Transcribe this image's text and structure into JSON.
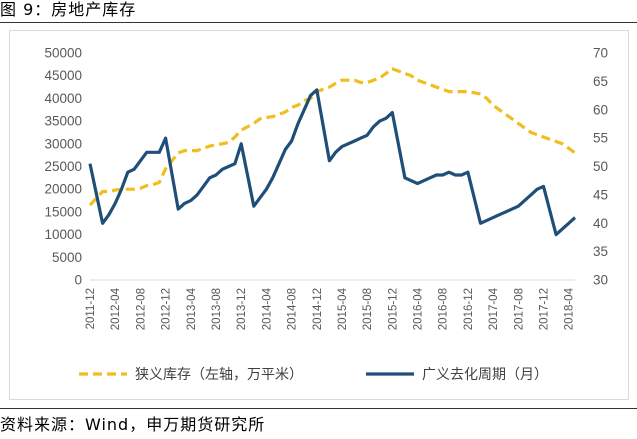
{
  "header": {
    "title": "图 9：房地产库存"
  },
  "footer": {
    "source": "资料来源：Wind，申万期货研究所"
  },
  "chart_data": {
    "type": "line",
    "colors": {
      "left_series": "#F0BE1E",
      "right_series": "#1F4E79",
      "axis_text": "#595959",
      "axis_line": "#D9D9D9"
    },
    "left_axis": {
      "ylim": [
        0,
        50000
      ],
      "ticks": [
        "0",
        "5000",
        "10000",
        "15000",
        "20000",
        "25000",
        "30000",
        "35000",
        "40000",
        "45000",
        "50000"
      ]
    },
    "right_axis": {
      "ylim": [
        30,
        70
      ],
      "ticks": [
        "30",
        "35",
        "40",
        "45",
        "50",
        "55",
        "60",
        "65",
        "70"
      ]
    },
    "x_tick_labels": [
      "2011-12",
      "2012-04",
      "2012-08",
      "2012-12",
      "2013-04",
      "2013-08",
      "2013-12",
      "2014-04",
      "2014-08",
      "2014-12",
      "2015-04",
      "2015-08",
      "2015-12",
      "2016-04",
      "2016-08",
      "2016-12",
      "2017-04",
      "2017-08",
      "2017-12",
      "2018-04"
    ],
    "x": [
      "2011-12",
      "2012-02",
      "2012-03",
      "2012-04",
      "2012-05",
      "2012-06",
      "2012-07",
      "2012-08",
      "2012-09",
      "2012-10",
      "2012-11",
      "2012-12",
      "2013-02",
      "2013-03",
      "2013-04",
      "2013-05",
      "2013-06",
      "2013-07",
      "2013-08",
      "2013-09",
      "2013-10",
      "2013-11",
      "2013-12",
      "2014-02",
      "2014-03",
      "2014-04",
      "2014-05",
      "2014-06",
      "2014-07",
      "2014-08",
      "2014-09",
      "2014-10",
      "2014-11",
      "2014-12",
      "2015-02",
      "2015-03",
      "2015-04",
      "2015-05",
      "2015-06",
      "2015-07",
      "2015-08",
      "2015-09",
      "2015-10",
      "2015-11",
      "2015-12",
      "2016-02",
      "2016-03",
      "2016-04",
      "2016-05",
      "2016-06",
      "2016-07",
      "2016-08",
      "2016-09",
      "2016-10",
      "2016-11",
      "2016-12",
      "2017-02",
      "2017-03",
      "2017-04",
      "2017-05",
      "2017-06",
      "2017-07",
      "2017-08",
      "2017-09",
      "2017-10",
      "2017-11",
      "2017-12",
      "2018-02",
      "2018-03",
      "2018-04",
      "2018-05"
    ],
    "series": [
      {
        "name": "狭义库存（左轴，万平米）",
        "axis": "left",
        "style": "dashed",
        "values": [
          16500,
          19500,
          19500,
          19800,
          20000,
          20000,
          20000,
          20200,
          20800,
          21000,
          21500,
          24500,
          28000,
          28500,
          28500,
          28500,
          29000,
          29500,
          29800,
          30000,
          30300,
          31500,
          33000,
          34500,
          35500,
          35800,
          36000,
          36500,
          37000,
          38000,
          38500,
          39500,
          40000,
          41500,
          42500,
          43300,
          44000,
          44000,
          44000,
          43500,
          43500,
          44000,
          44500,
          45500,
          46500,
          45500,
          45000,
          44000,
          43500,
          43000,
          42500,
          42000,
          41500,
          41500,
          41500,
          41500,
          41000,
          40000,
          38500,
          37500,
          36500,
          35500,
          34500,
          33500,
          32500,
          32000,
          31500,
          30500,
          30000,
          29000,
          28000
        ]
      },
      {
        "name": "广义去化周期（月）",
        "axis": "right",
        "style": "solid",
        "values": [
          50.5,
          40,
          41.5,
          43.5,
          46,
          49,
          49.5,
          51,
          52.5,
          52.5,
          52.5,
          55,
          42.5,
          43.5,
          44,
          45,
          46.5,
          48,
          48.5,
          49.5,
          50,
          50.5,
          54,
          43,
          44.5,
          46,
          48,
          50.5,
          53,
          54.5,
          57.5,
          60,
          62.5,
          63.5,
          51,
          52.5,
          53.5,
          54,
          54.5,
          55,
          55.5,
          57,
          58,
          58.5,
          59.5,
          48,
          47.5,
          47,
          47.5,
          48,
          48.5,
          48.5,
          49,
          48.5,
          48.5,
          49,
          40,
          40.5,
          41,
          41.5,
          42,
          42.5,
          43,
          44,
          45,
          46,
          46.5,
          38,
          39,
          40,
          41
        ]
      }
    ],
    "legend": {
      "placement": "bottom"
    },
    "grid": false
  }
}
